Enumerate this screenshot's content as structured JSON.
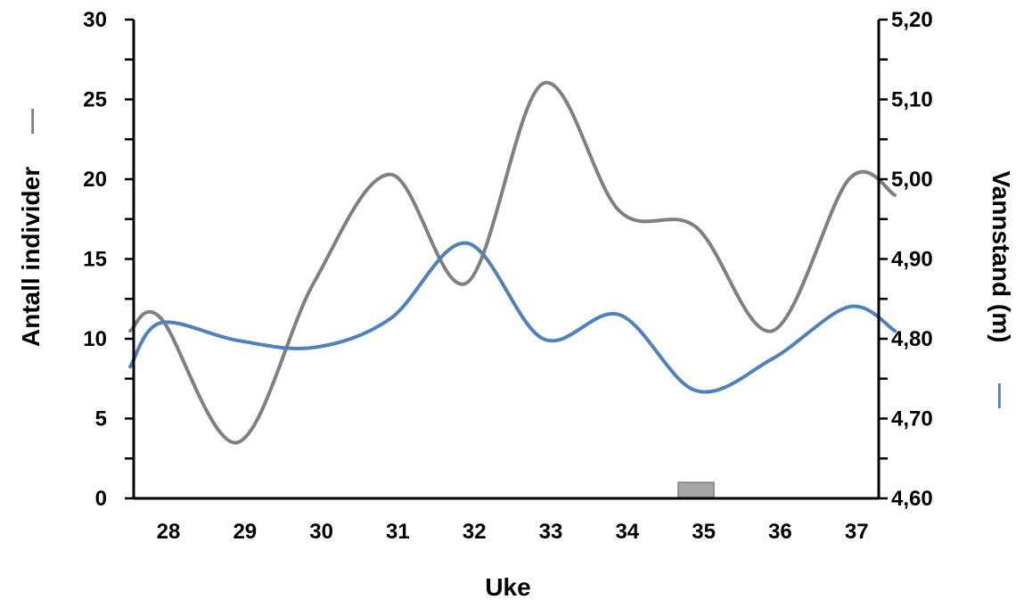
{
  "chart_data": {
    "type": "line",
    "xlabel": "Uke",
    "ylabel_left": "Antall individer",
    "ylabel_right": "Vannstand (m)",
    "categories": [
      "28",
      "29",
      "30",
      "31",
      "32",
      "33",
      "34",
      "35",
      "36",
      "37"
    ],
    "y_left_lim": [
      0,
      30
    ],
    "y_left_ticks": [
      "0",
      "5",
      "10",
      "15",
      "20",
      "25",
      "30"
    ],
    "y_right_lim": [
      4.6,
      5.2
    ],
    "y_right_ticks": [
      "4,60",
      "4,70",
      "4,80",
      "4,90",
      "5,00",
      "5,10",
      "5,20"
    ],
    "grid": false,
    "colors": {
      "series_count": "#808080",
      "series_water": "#4f81bd",
      "bar": "#a6a6a6",
      "axis": "#000000"
    },
    "series": [
      {
        "axis": "left",
        "legend_symbol": "—",
        "x": [
          27.5,
          27.9,
          28.9,
          29.9,
          30.9,
          31.9,
          32.9,
          33.9,
          34.9,
          35.9,
          36.9,
          37.5
        ],
        "values": [
          10.5,
          11.3,
          3.5,
          13.5,
          20.3,
          13.5,
          26,
          18,
          17,
          10.5,
          20,
          19
        ]
      },
      {
        "axis": "right",
        "legend_symbol": "—",
        "x": [
          27.5,
          27.9,
          28.9,
          29.9,
          30.9,
          31.9,
          32.9,
          33.9,
          34.9,
          35.9,
          36.9,
          37.5
        ],
        "values": [
          4.765,
          4.82,
          4.798,
          4.789,
          4.825,
          4.92,
          4.8,
          4.83,
          4.735,
          4.775,
          4.84,
          4.81
        ]
      },
      {
        "axis": "left",
        "type": "bar",
        "x": [
          34.9
        ],
        "values": [
          1
        ]
      }
    ]
  }
}
